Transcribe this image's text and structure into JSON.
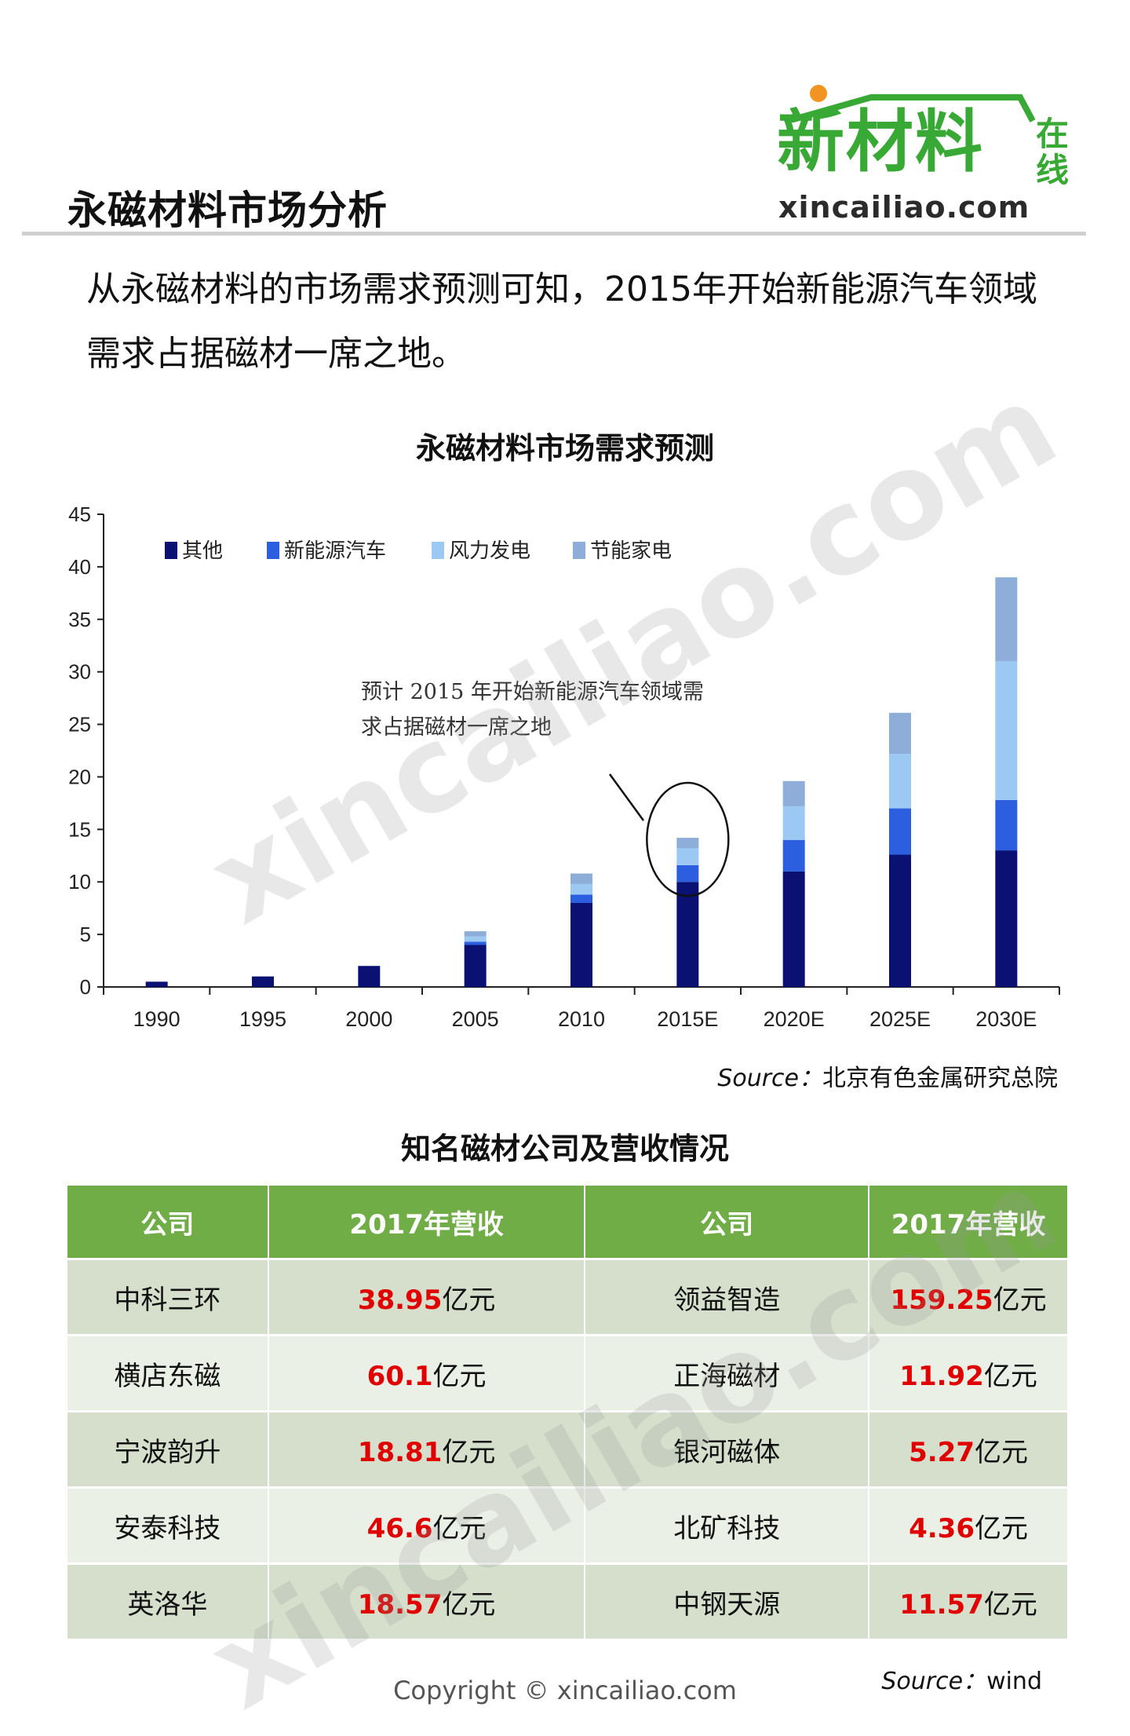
{
  "header": {
    "title": "永磁材料市场分析",
    "logo_main": "新材料",
    "logo_side": "在线",
    "logo_url": "xincailiao.com"
  },
  "intro_text": "从永磁材料的市场需求预测可知，2015年开始新能源汽车领域需求占据磁材一席之地。",
  "chart_data": {
    "type": "bar",
    "stacked": true,
    "title": "永磁材料市场需求预测",
    "categories": [
      "1990",
      "1995",
      "2000",
      "2005",
      "2010",
      "2015E",
      "2020E",
      "2025E",
      "2030E"
    ],
    "series": [
      {
        "name": "其他",
        "color": "#0a1172",
        "values": [
          0.5,
          1.0,
          2.0,
          4.0,
          8.0,
          10.0,
          11.0,
          12.6,
          13.0
        ]
      },
      {
        "name": "新能源汽车",
        "color": "#2b5fe0",
        "values": [
          0,
          0,
          0,
          0.3,
          0.8,
          1.6,
          3.0,
          4.4,
          4.8
        ]
      },
      {
        "name": "风力发电",
        "color": "#9cc8f4",
        "values": [
          0,
          0,
          0,
          0.5,
          1.0,
          1.6,
          3.2,
          5.2,
          13.2
        ]
      },
      {
        "name": "节能家电",
        "color": "#8eaed9",
        "values": [
          0,
          0,
          0,
          0.5,
          1.0,
          1.0,
          2.4,
          3.9,
          8.0
        ]
      }
    ],
    "yticks": [
      0,
      5,
      10,
      15,
      20,
      25,
      30,
      35,
      40,
      45
    ],
    "ylim": [
      0,
      45
    ],
    "legend_position": "top-left",
    "annotation": {
      "line1": "预计 2015 年开始新能源汽车领域需",
      "line2": "求占据磁材一席之地",
      "target_category": "2015E"
    },
    "xlabel": "",
    "ylabel": ""
  },
  "chart_source": {
    "label": "Source：",
    "value": "北京有色金属研究总院"
  },
  "table": {
    "title": "知名磁材公司及营收情况",
    "headers": [
      "公司",
      "2017年营收",
      "公司",
      "2017年营收"
    ],
    "unit": "亿元",
    "rows": [
      {
        "c1": "中科三环",
        "v1": "38.95",
        "c2": "领益智造",
        "v2": "159.25"
      },
      {
        "c1": "横店东磁",
        "v1": "60.1",
        "c2": "正海磁材",
        "v2": "11.92"
      },
      {
        "c1": "宁波韵升",
        "v1": "18.81",
        "c2": "银河磁体",
        "v2": "5.27"
      },
      {
        "c1": "安泰科技",
        "v1": "46.6",
        "c2": "北矿科技",
        "v2": "4.36"
      },
      {
        "c1": "英洛华",
        "v1": "18.57",
        "c2": "中钢天源",
        "v2": "11.57"
      }
    ]
  },
  "table_source": {
    "label": "Source：",
    "value": "wind"
  },
  "copyright": "Copyright © xincailiao.com",
  "watermark": "xincailiao.com"
}
